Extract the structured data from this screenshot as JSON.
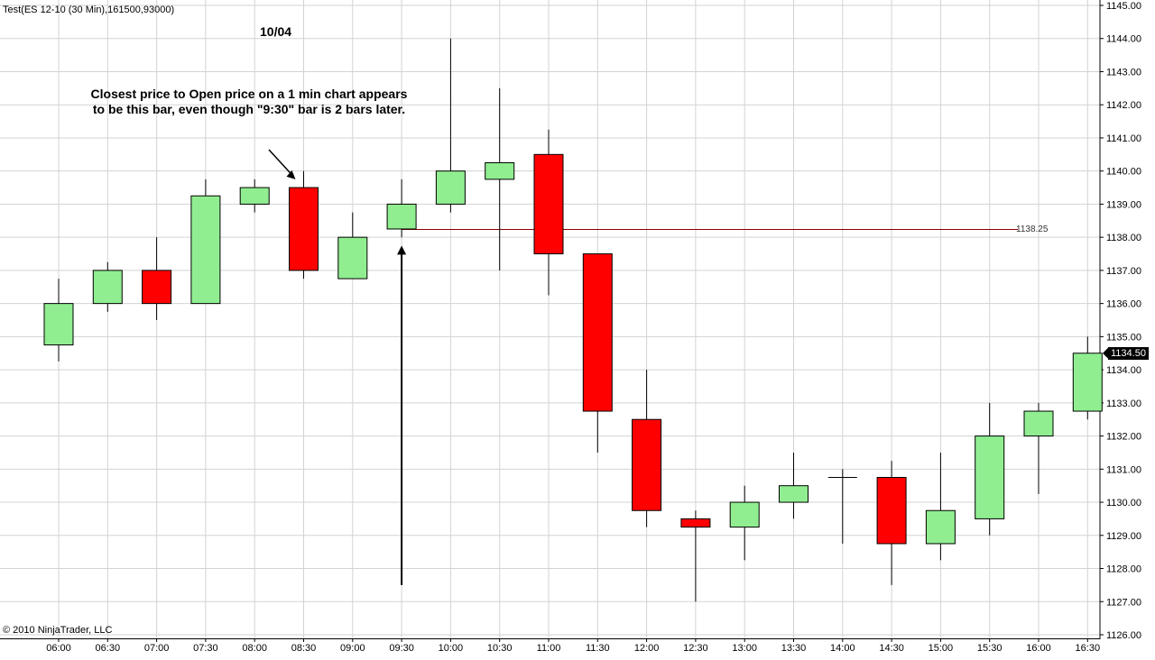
{
  "window": {
    "title": "Test(ES 12-10 (30 Min),161500,93000)",
    "copyright": "© 2010 NinjaTrader, LLC"
  },
  "colors": {
    "up_fill": "#90ee90",
    "down_fill": "#ff0000",
    "candle_outline": "#000000",
    "grid": "#d3d3d3",
    "reference_line": "#8b0000",
    "background": "#ffffff"
  },
  "chart_data": {
    "type": "candlestick",
    "title": "Test(ES 12-10 (30 Min),161500,93000)",
    "date_label": "10/04",
    "x_tick_labels": [
      "06:00",
      "06:30",
      "07:00",
      "07:30",
      "08:00",
      "08:30",
      "09:00",
      "09:30",
      "10:00",
      "10:30",
      "11:00",
      "11:30",
      "12:00",
      "12:30",
      "13:00",
      "13:30",
      "14:00",
      "14:30",
      "15:00",
      "15:30",
      "16:00",
      "16:30"
    ],
    "y_tick_labels": [
      "1145.00",
      "1144.00",
      "1143.00",
      "1142.00",
      "1141.00",
      "1140.00",
      "1139.00",
      "1138.00",
      "1137.00",
      "1136.00",
      "1135.00",
      "1134.00",
      "1133.00",
      "1132.00",
      "1131.00",
      "1130.00",
      "1129.00",
      "1128.00",
      "1127.00",
      "1126.00"
    ],
    "ylim": [
      1126,
      1145
    ],
    "grid": true,
    "candles": [
      {
        "time": "06:00",
        "open": 1134.75,
        "high": 1136.75,
        "low": 1134.25,
        "close": 1136.0
      },
      {
        "time": "06:30",
        "open": 1136.0,
        "high": 1137.25,
        "low": 1135.75,
        "close": 1137.0
      },
      {
        "time": "07:00",
        "open": 1137.0,
        "high": 1138.0,
        "low": 1135.5,
        "close": 1136.0
      },
      {
        "time": "07:30",
        "open": 1136.0,
        "high": 1139.75,
        "low": 1136.0,
        "close": 1139.25
      },
      {
        "time": "08:00",
        "open": 1139.0,
        "high": 1139.75,
        "low": 1138.75,
        "close": 1139.5
      },
      {
        "time": "08:30",
        "open": 1139.5,
        "high": 1140.0,
        "low": 1136.75,
        "close": 1137.0
      },
      {
        "time": "09:00",
        "open": 1136.75,
        "high": 1138.75,
        "low": 1136.75,
        "close": 1138.0
      },
      {
        "time": "09:30",
        "open": 1138.25,
        "high": 1139.75,
        "low": 1138.0,
        "close": 1139.0
      },
      {
        "time": "10:00",
        "open": 1139.0,
        "high": 1144.0,
        "low": 1138.75,
        "close": 1140.0
      },
      {
        "time": "10:30",
        "open": 1139.75,
        "high": 1142.5,
        "low": 1137.0,
        "close": 1140.25
      },
      {
        "time": "11:00",
        "open": 1140.5,
        "high": 1141.25,
        "low": 1136.25,
        "close": 1137.5
      },
      {
        "time": "11:30",
        "open": 1137.5,
        "high": 1137.5,
        "low": 1131.5,
        "close": 1132.75
      },
      {
        "time": "12:00",
        "open": 1132.5,
        "high": 1134.0,
        "low": 1129.25,
        "close": 1129.75
      },
      {
        "time": "12:30",
        "open": 1129.5,
        "high": 1129.75,
        "low": 1127.0,
        "close": 1129.25
      },
      {
        "time": "13:00",
        "open": 1129.25,
        "high": 1130.5,
        "low": 1128.25,
        "close": 1130.0
      },
      {
        "time": "13:30",
        "open": 1130.0,
        "high": 1131.5,
        "low": 1129.5,
        "close": 1130.5
      },
      {
        "time": "14:00",
        "open": 1130.75,
        "high": 1131.0,
        "low": 1128.75,
        "close": 1130.75
      },
      {
        "time": "14:30",
        "open": 1130.75,
        "high": 1131.25,
        "low": 1127.5,
        "close": 1128.75
      },
      {
        "time": "15:00",
        "open": 1128.75,
        "high": 1131.5,
        "low": 1128.25,
        "close": 1129.75
      },
      {
        "time": "15:30",
        "open": 1129.5,
        "high": 1133.0,
        "low": 1129.0,
        "close": 1132.0
      },
      {
        "time": "16:00",
        "open": 1132.0,
        "high": 1133.0,
        "low": 1130.25,
        "close": 1132.75
      },
      {
        "time": "16:30",
        "open": 1132.75,
        "high": 1135.0,
        "low": 1132.5,
        "close": 1134.5
      }
    ],
    "reference_line": {
      "value": 1138.25,
      "label": "1138.25",
      "from": "09:30"
    },
    "last_price": {
      "value": 1134.5,
      "label": "1134.50"
    },
    "annotation": {
      "text": "Closest price to Open price on a 1 min chart appears to be this bar, even though \"9:30\" bar is 2 bars later.",
      "points_to": "08:30"
    },
    "arrow": {
      "at": "09:30",
      "from_value": 1127.5,
      "to_value": 1137.75
    }
  }
}
